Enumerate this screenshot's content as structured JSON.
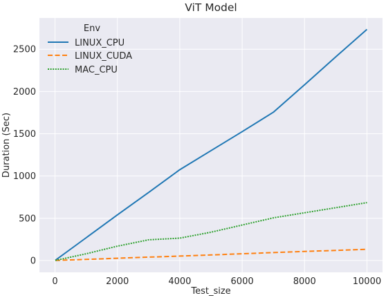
{
  "chart_data": {
    "type": "line",
    "title": "ViT Model",
    "xlabel": "Test_size",
    "ylabel": "Duration (Sec)",
    "xlim": [
      -500,
      10500
    ],
    "ylim": [
      -140,
      2870
    ],
    "xticks": [
      0,
      2000,
      4000,
      6000,
      8000,
      10000
    ],
    "yticks": [
      0,
      500,
      1000,
      1500,
      2000,
      2500
    ],
    "xtick_labels": [
      "0",
      "2000",
      "4000",
      "6000",
      "8000",
      "10000"
    ],
    "ytick_labels": [
      "0",
      "500",
      "1000",
      "1500",
      "2000",
      "2500"
    ],
    "grid": true,
    "background_color": "#eaeaf2",
    "legend": {
      "title": "Env",
      "position": "upper-left"
    },
    "series": [
      {
        "name": "LINUX_CPU",
        "color": "#1f77b4",
        "style": "solid",
        "x": [
          10,
          100,
          500,
          1000,
          2000,
          3000,
          4000,
          5000,
          6000,
          7000,
          8000,
          9000,
          10000
        ],
        "y": [
          3,
          27,
          135,
          270,
          540,
          805,
          1075,
          1300,
          1525,
          1755,
          2080,
          2410,
          2735
        ]
      },
      {
        "name": "LINUX_CUDA",
        "color": "#ff7f0e",
        "style": "dashed",
        "x": [
          10,
          100,
          500,
          1000,
          2000,
          3000,
          4000,
          5000,
          6000,
          7000,
          8000,
          9000,
          10000
        ],
        "y": [
          1,
          2,
          7,
          13,
          27,
          40,
          53,
          66,
          80,
          94,
          107,
          120,
          133
        ]
      },
      {
        "name": "MAC_CPU",
        "color": "#2ca02c",
        "style": "dotted",
        "x": [
          10,
          100,
          500,
          1000,
          2000,
          3000,
          4000,
          5000,
          6000,
          7000,
          8000,
          9000,
          10000
        ],
        "y": [
          2,
          8,
          40,
          80,
          170,
          245,
          265,
          335,
          420,
          505,
          565,
          625,
          685
        ]
      }
    ]
  }
}
